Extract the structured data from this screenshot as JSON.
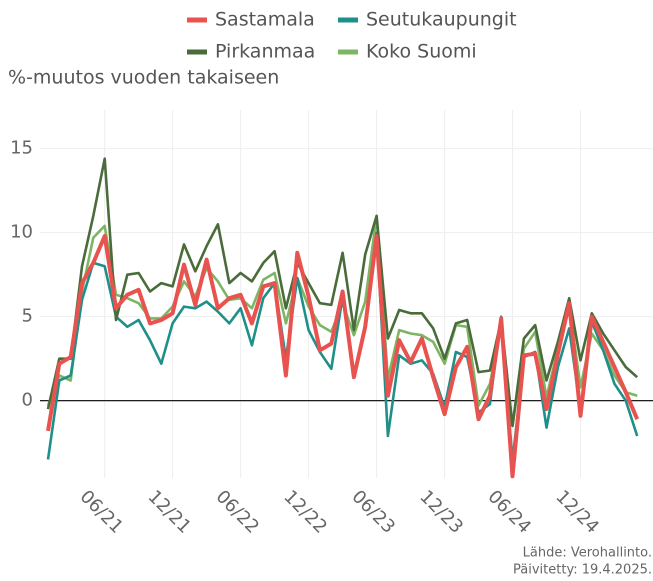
{
  "chart_data": {
    "type": "line",
    "y_axis_label": "%-muutos vuoden takaiseen",
    "source": "Lähde: Verohallinto.",
    "updated": "Päivitetty: 19.4.2025.",
    "categories": [
      null,
      null,
      null,
      null,
      null,
      "06/21",
      null,
      null,
      null,
      null,
      null,
      "12/21",
      null,
      null,
      null,
      null,
      null,
      "06/22",
      null,
      null,
      null,
      null,
      null,
      "12/22",
      null,
      null,
      null,
      null,
      null,
      "06/23",
      null,
      null,
      null,
      null,
      null,
      "12/23",
      null,
      null,
      null,
      null,
      null,
      "06/24",
      null,
      null,
      null,
      null,
      null,
      "12/24",
      null,
      null,
      null,
      null,
      null
    ],
    "series": [
      {
        "name": "Sastamala",
        "color": "#e8534f",
        "values": [
          -1.8,
          2.2,
          2.6,
          7,
          8.2,
          9.8,
          5.5,
          6.3,
          6.6,
          4.6,
          4.8,
          5.2,
          8.1,
          5.7,
          8.4,
          5.5,
          6.1,
          6.3,
          4.6,
          6.8,
          7,
          1.5,
          8.8,
          6.2,
          3,
          3.4,
          6.5,
          1.4,
          4.4,
          9.8,
          0.3,
          3.6,
          2.3,
          3.7,
          1.4,
          -0.8,
          2,
          3.2,
          -1.1,
          0.3,
          4.9,
          -4.5,
          2.7,
          2.8,
          -0.5,
          2.8,
          5.8,
          -0.9,
          5,
          3.5,
          2,
          0.5,
          -1.1
        ]
      },
      {
        "name": "Seutukaupungit",
        "color": "#1f8f8a",
        "values": [
          -3.5,
          1.2,
          1.5,
          6,
          8.2,
          8,
          5,
          4.4,
          4.8,
          3.6,
          2.2,
          4.6,
          5.6,
          5.5,
          5.9,
          5.3,
          4.6,
          5.5,
          3.3,
          6.1,
          7,
          2.5,
          7.3,
          4.2,
          2.9,
          1.9,
          6.2,
          1.6,
          4.3,
          10,
          -2.1,
          2.7,
          2.2,
          2.4,
          1.6,
          -0.4,
          2.9,
          2.6,
          -0.7,
          -0.2,
          5,
          -3.6,
          2.6,
          2.9,
          -1.6,
          2,
          4.3,
          -0.6,
          4.7,
          3,
          1,
          0,
          -2.1
        ]
      },
      {
        "name": "Pirkanmaa",
        "color": "#4a6b3a",
        "values": [
          -0.5,
          2.5,
          2.5,
          8,
          11,
          14.4,
          4.8,
          7.5,
          7.6,
          6.5,
          7,
          6.8,
          9.3,
          7.7,
          9.2,
          10.5,
          7,
          7.6,
          7.1,
          8.2,
          8.9,
          5.5,
          8.2,
          7,
          5.8,
          5.7,
          8.8,
          4.2,
          8.7,
          11,
          3.7,
          5.4,
          5.2,
          5.2,
          4.3,
          2.5,
          4.6,
          4.8,
          1.7,
          1.8,
          4.8,
          -1.5,
          3.7,
          4.5,
          1.2,
          3.5,
          6.1,
          2.4,
          5.2,
          4,
          3,
          2,
          1.4
        ]
      },
      {
        "name": "Koko Suomi",
        "color": "#7db565",
        "values": [
          -0.3,
          1.5,
          1.2,
          6.5,
          9.7,
          10.4,
          6.3,
          6.1,
          5.8,
          4.9,
          4.9,
          5.6,
          7.1,
          6.2,
          7.9,
          7.1,
          6,
          6.1,
          5.5,
          7.2,
          7.6,
          4.6,
          7.3,
          5.6,
          4.5,
          4.1,
          5.8,
          3.9,
          5.9,
          11,
          1.3,
          4.2,
          4,
          3.9,
          3.5,
          2.2,
          4.5,
          4.4,
          -0.3,
          1,
          4.5,
          -1.5,
          3.1,
          4.1,
          0.2,
          3.1,
          5.7,
          0.8,
          4,
          3,
          1.5,
          0.5,
          0.3
        ]
      }
    ],
    "ylim": [
      -4.6,
      17.3
    ],
    "yticks": [
      0,
      5,
      10,
      15
    ],
    "grid": true
  }
}
